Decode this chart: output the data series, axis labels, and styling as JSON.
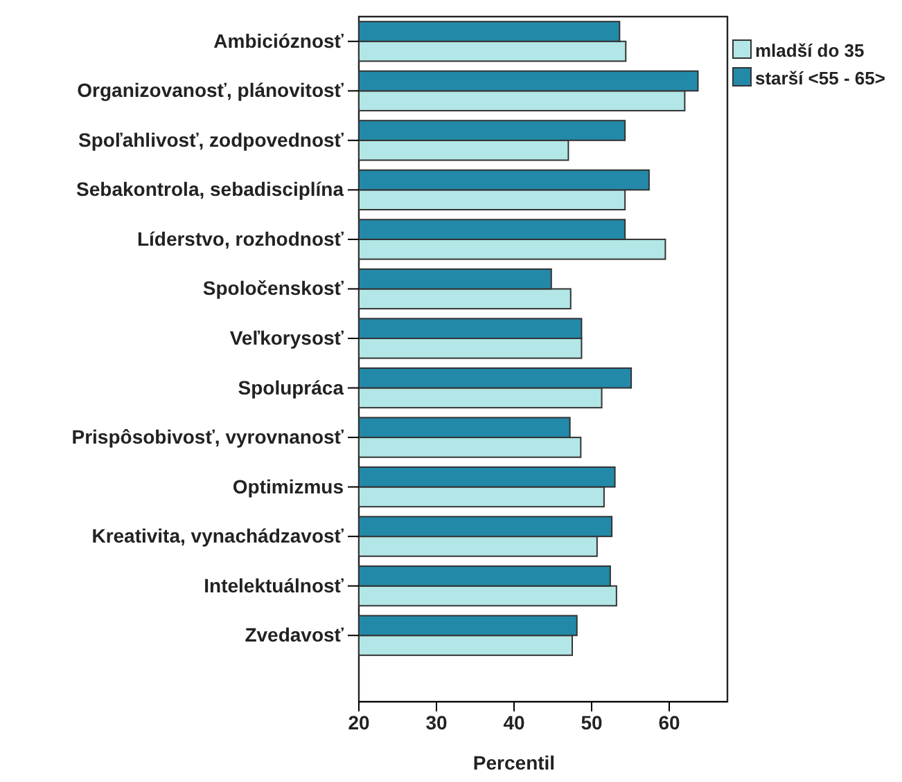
{
  "chart_data": {
    "type": "bar",
    "orientation": "horizontal",
    "xlabel": "Percentil",
    "categories": [
      "Ambicióznosť",
      "Organizovanosť, plánovitosť",
      "Spoľahlivosť, zodpovednosť",
      "Sebakontrola, sebadisciplína",
      "Líderstvo, rozhodnosť",
      "Spoločenskosť",
      "Veľkorysosť",
      "Spolupráca",
      "Prispôsobivosť, vyrovnanosť",
      "Optimizmus",
      "Kreativita, vynachádzavosť",
      "Intelektuálnosť",
      "Zvedavosť"
    ],
    "series": [
      {
        "name": "mladší do 35",
        "color": "#b3e6e6",
        "values": [
          54.4,
          62.0,
          47.0,
          54.3,
          59.5,
          47.3,
          48.7,
          51.3,
          48.6,
          51.6,
          50.7,
          53.2,
          47.5
        ]
      },
      {
        "name": "starší <55 - 65>",
        "color": "#2389a9",
        "values": [
          53.6,
          63.7,
          54.3,
          57.4,
          54.3,
          44.8,
          48.7,
          55.1,
          47.2,
          53.0,
          52.6,
          52.4,
          48.1
        ]
      }
    ],
    "xlim": [
      20,
      67.5
    ],
    "xticks": [
      20,
      30,
      40,
      50,
      60
    ],
    "grid": false,
    "legend": "top right"
  }
}
